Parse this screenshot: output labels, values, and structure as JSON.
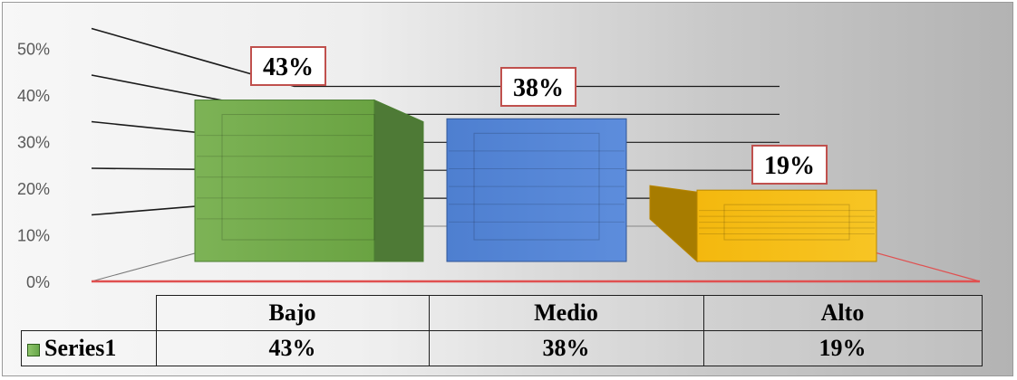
{
  "chart_data": {
    "type": "bar",
    "categories": [
      "Bajo",
      "Medio",
      "Alto"
    ],
    "series": [
      {
        "name": "Series1",
        "values": [
          43,
          38,
          19
        ]
      }
    ],
    "data_labels": [
      "43%",
      "38%",
      "19%"
    ],
    "y_ticks": [
      "0%",
      "10%",
      "20%",
      "30%",
      "40%",
      "50%"
    ],
    "ylim": [
      0,
      50
    ],
    "grid": true,
    "legend": "in data table",
    "colors": {
      "bajo": "#70ad47",
      "medio": "#4472c4",
      "alto": "#ffc000",
      "label_border": "#c0504d",
      "floor_line": "#e05050"
    }
  },
  "table": {
    "legend_label": "Series1",
    "values": [
      "43%",
      "38%",
      "19%"
    ]
  }
}
